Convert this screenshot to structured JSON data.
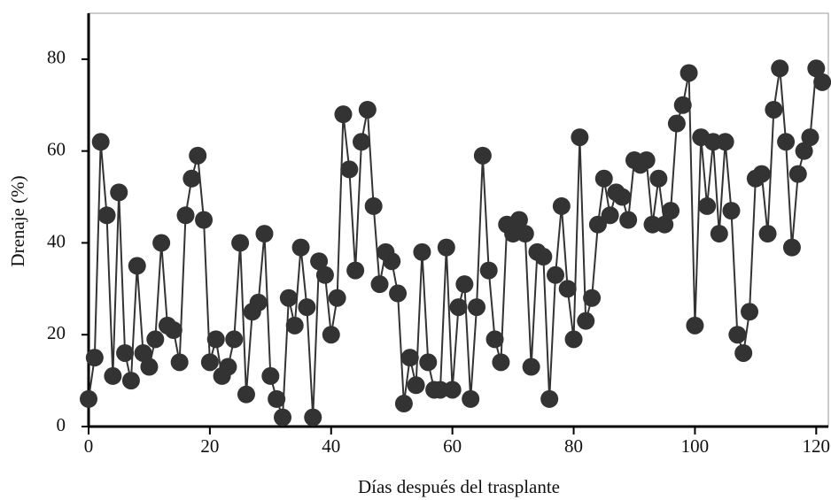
{
  "chart_data": {
    "type": "line",
    "x_label": "Días después del trasplante",
    "y_label": "Drenaje (%)",
    "x": [
      0,
      1,
      2,
      3,
      4,
      5,
      6,
      7,
      8,
      9,
      10,
      11,
      12,
      13,
      14,
      15,
      16,
      17,
      18,
      19,
      20,
      21,
      22,
      23,
      24,
      25,
      26,
      27,
      28,
      29,
      30,
      31,
      32,
      33,
      34,
      35,
      36,
      37,
      38,
      39,
      40,
      41,
      42,
      43,
      44,
      45,
      46,
      47,
      48,
      49,
      50,
      51,
      52,
      53,
      54,
      55,
      56,
      57,
      58,
      59,
      60,
      61,
      62,
      63,
      64,
      65,
      66,
      67,
      68,
      69,
      70,
      71,
      72,
      73,
      74,
      75,
      76,
      77,
      78,
      79,
      80,
      81,
      82,
      83,
      84,
      85,
      86,
      87,
      88,
      89,
      90,
      91,
      92,
      93,
      94,
      95,
      96,
      97,
      98,
      99,
      100,
      101,
      102,
      103,
      104,
      105,
      106,
      107,
      108,
      109,
      110,
      111,
      112,
      113,
      114,
      115,
      116,
      117,
      118,
      119,
      120,
      121
    ],
    "series": [
      {
        "color": "#333333",
        "values": [
          6,
          15,
          62,
          46,
          11,
          51,
          16,
          10,
          35,
          16,
          13,
          19,
          40,
          22,
          21,
          14,
          46,
          54,
          59,
          45,
          14,
          19,
          11,
          13,
          19,
          40,
          7,
          25,
          27,
          42,
          11,
          6,
          2,
          28,
          22,
          39,
          26,
          2,
          36,
          33,
          20,
          28,
          68,
          56,
          34,
          62,
          69,
          48,
          31,
          38,
          36,
          29,
          5,
          15,
          9,
          38,
          14,
          8,
          8,
          39,
          8,
          26,
          31,
          6,
          26,
          59,
          34,
          19,
          14,
          44,
          42,
          45,
          42,
          13,
          38,
          37,
          6,
          33,
          48,
          30,
          19,
          63,
          23,
          28,
          44,
          54,
          46,
          51,
          50,
          45,
          58,
          57,
          58,
          44,
          54,
          44,
          47,
          66,
          70,
          77,
          22,
          63,
          48,
          62,
          42,
          62,
          47,
          20,
          16,
          25,
          54,
          55,
          42,
          69,
          78,
          62,
          39,
          55,
          60,
          63,
          78,
          75
        ]
      }
    ],
    "xlim": [
      0,
      122
    ],
    "ylim": [
      0,
      90
    ],
    "xticks": [
      0,
      20,
      40,
      60,
      80,
      100,
      120
    ],
    "yticks": [
      0,
      20,
      40,
      60,
      80
    ]
  }
}
